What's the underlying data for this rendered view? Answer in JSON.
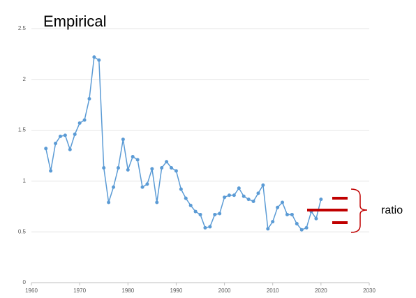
{
  "chart_data": {
    "type": "line",
    "title": "Empirical",
    "x": [
      1963,
      1964,
      1965,
      1966,
      1967,
      1968,
      1969,
      1970,
      1971,
      1972,
      1973,
      1974,
      1975,
      1976,
      1977,
      1978,
      1979,
      1980,
      1981,
      1982,
      1983,
      1984,
      1985,
      1986,
      1987,
      1988,
      1989,
      1990,
      1991,
      1992,
      1993,
      1994,
      1995,
      1996,
      1997,
      1998,
      1999,
      2000,
      2001,
      2002,
      2003,
      2004,
      2005,
      2006,
      2007,
      2008,
      2009,
      2010,
      2011,
      2012,
      2013,
      2014,
      2015,
      2016,
      2017,
      2018,
      2019,
      2020
    ],
    "series": [
      {
        "color": "#5b9bd5",
        "values": [
          1.32,
          1.1,
          1.37,
          1.44,
          1.45,
          1.31,
          1.46,
          1.57,
          1.6,
          1.81,
          2.22,
          2.19,
          1.13,
          0.79,
          0.94,
          1.13,
          1.41,
          1.11,
          1.24,
          1.21,
          0.94,
          0.97,
          1.12,
          0.79,
          1.13,
          1.19,
          1.13,
          1.1,
          0.92,
          0.83,
          0.76,
          0.7,
          0.67,
          0.54,
          0.55,
          0.67,
          0.68,
          0.84,
          0.86,
          0.86,
          0.93,
          0.85,
          0.82,
          0.8,
          0.88,
          0.96,
          0.53,
          0.6,
          0.74,
          0.79,
          0.67,
          0.67,
          0.58,
          0.52,
          0.54,
          0.7,
          0.63,
          0.82
        ]
      }
    ],
    "xlim": [
      1960,
      2030
    ],
    "xticks": [
      1960,
      1970,
      1980,
      1990,
      2000,
      2010,
      2020,
      2030
    ],
    "ylim": [
      0,
      2.5
    ],
    "yticks": [
      0,
      0.5,
      1,
      1.5,
      2,
      2.5
    ],
    "grid": true,
    "annotation": "ratio"
  }
}
